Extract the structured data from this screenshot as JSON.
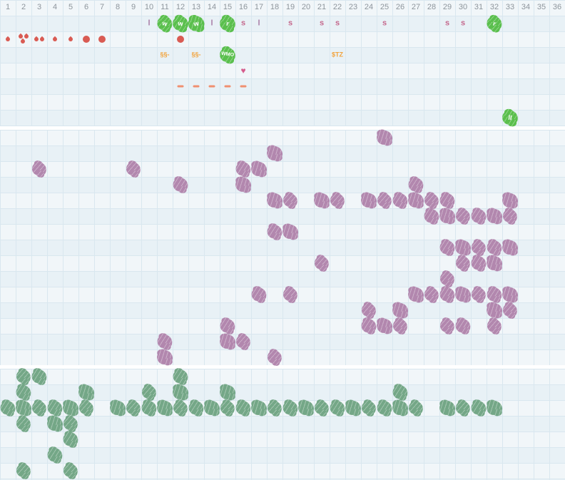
{
  "app": {
    "title": "weekly-planting-calendar-grid",
    "weeks_total": 36
  },
  "colors": {
    "grid_bg": "#f1f6f9",
    "grid_line": "#d9e7ef",
    "separator": "#ffffff",
    "week_number_text": "#8d959c",
    "harvest_blob": "#b287ae",
    "planting_blob": "#74a787",
    "marker_blob_green": "#5abf4d",
    "marker_blob_text": "#ffffff",
    "letter_purple": "#a87ba6",
    "letter_pink": "#c4688c",
    "water_drop_red": "#d95b53",
    "cost_orange": "#f2a33c",
    "heart_pink": "#d65c8d",
    "dash_salmon": "#f09070"
  },
  "header": {
    "week_numbers": [
      "1",
      "2",
      "3",
      "4",
      "5",
      "6",
      "7",
      "8",
      "9",
      "10",
      "11",
      "12",
      "13",
      "14",
      "15",
      "16",
      "17",
      "18",
      "19",
      "20",
      "21",
      "22",
      "23",
      "24",
      "25",
      "26",
      "27",
      "28",
      "29",
      "30",
      "31",
      "32",
      "33",
      "34",
      "35",
      "36"
    ],
    "activity_row": [
      {
        "col": 10,
        "text": "l",
        "style": "letter-purple"
      },
      {
        "col": 11,
        "text": "w",
        "style": "green-blob"
      },
      {
        "col": 12,
        "text": "w",
        "style": "green-blob"
      },
      {
        "col": 13,
        "text": "w",
        "style": "green-blob"
      },
      {
        "col": 14,
        "text": "l",
        "style": "letter-purple"
      },
      {
        "col": 15,
        "text": "r",
        "style": "green-blob"
      },
      {
        "col": 16,
        "text": "s",
        "style": "letter-pink"
      },
      {
        "col": 17,
        "text": "l",
        "style": "letter-purple"
      },
      {
        "col": 19,
        "text": "s",
        "style": "letter-pink"
      },
      {
        "col": 21,
        "text": "s",
        "style": "letter-pink"
      },
      {
        "col": 22,
        "text": "s",
        "style": "letter-pink"
      },
      {
        "col": 25,
        "text": "s",
        "style": "letter-pink"
      },
      {
        "col": 29,
        "text": "s",
        "style": "letter-pink"
      },
      {
        "col": 30,
        "text": "s",
        "style": "letter-pink"
      },
      {
        "col": 32,
        "text": "r",
        "style": "green-blob"
      }
    ],
    "water_row": [
      {
        "col": 1,
        "icon": "drop",
        "count": 1
      },
      {
        "col": 2,
        "icon": "drop",
        "count": 3
      },
      {
        "col": 3,
        "icon": "drop",
        "count": 2
      },
      {
        "col": 4,
        "icon": "drop",
        "count": 1
      },
      {
        "col": 5,
        "icon": "drop",
        "count": 1
      },
      {
        "col": 6,
        "icon": "dot",
        "count": 1
      },
      {
        "col": 7,
        "icon": "dot",
        "count": 1
      },
      {
        "col": 12,
        "icon": "dot",
        "count": 1
      }
    ],
    "cost_row": [
      {
        "col": 11,
        "text": "§§-",
        "style": "cost-orange"
      },
      {
        "col": 13,
        "text": "§§-",
        "style": "cost-orange"
      },
      {
        "col": 15,
        "text": "WMO",
        "style": "green-blob"
      },
      {
        "col": 22,
        "text": "$TZ",
        "style": "cost-orange"
      }
    ],
    "heart_row": [
      {
        "col": 16,
        "icon": "heart"
      }
    ],
    "dash_row": [
      {
        "col": 12
      },
      {
        "col": 13
      },
      {
        "col": 14
      },
      {
        "col": 15
      },
      {
        "col": 16
      }
    ],
    "marker_row": [
      {
        "col": 33,
        "text": "ll",
        "style": "green-blob"
      }
    ]
  },
  "harvest_section": {
    "rows": [
      [
        25
      ],
      [
        18
      ],
      [
        3,
        9,
        16,
        17
      ],
      [
        12,
        16,
        27
      ],
      [
        18,
        19,
        21,
        22,
        24,
        25,
        26,
        27,
        28,
        29,
        33
      ],
      [
        28,
        29,
        30,
        31,
        32,
        33
      ],
      [
        18,
        19
      ],
      [
        29,
        30,
        31,
        32,
        33
      ],
      [
        21,
        30,
        31,
        32
      ],
      [
        29
      ],
      [
        17,
        19,
        27,
        28,
        29,
        30,
        31,
        32,
        33
      ],
      [
        24,
        26,
        32,
        33
      ],
      [
        15,
        24,
        25,
        26,
        29,
        30,
        32
      ],
      [
        11,
        15,
        16
      ],
      [
        11,
        18
      ]
    ]
  },
  "planting_section": {
    "rows": [
      [
        2,
        3,
        12
      ],
      [
        2,
        6,
        10,
        12,
        15,
        26
      ],
      [
        1,
        2,
        3,
        4,
        5,
        6,
        8,
        9,
        10,
        11,
        12,
        13,
        14,
        15,
        16,
        17,
        18,
        19,
        20,
        21,
        22,
        23,
        24,
        25,
        26,
        27,
        29,
        30,
        31,
        32
      ],
      [
        2,
        4,
        5
      ],
      [
        5
      ],
      [
        4
      ],
      [
        2,
        5
      ]
    ]
  }
}
